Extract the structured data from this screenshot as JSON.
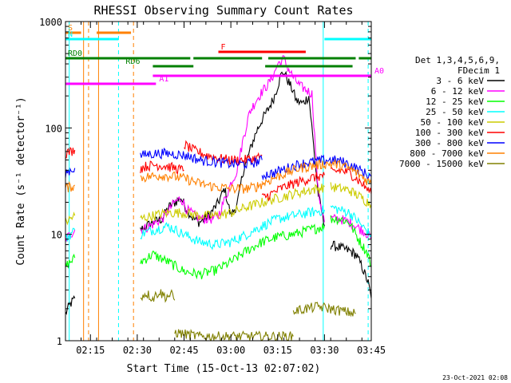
{
  "chart_data": {
    "type": "line",
    "title": "RHESSI Observing Summary Count Rates",
    "xlabel": "Start Time (15-Oct-13 02:07:02)",
    "ylabel": "Count Rate (s⁻¹ detector⁻¹)",
    "x_unit": "minutes after 02:00 UT",
    "xlim": [
      7.0,
      105.0
    ],
    "ylim": [
      1,
      1000
    ],
    "yscale": "log",
    "x_ticks": [
      {
        "value": 15,
        "label": "02:15"
      },
      {
        "value": 30,
        "label": "02:30"
      },
      {
        "value": 45,
        "label": "02:45"
      },
      {
        "value": 60,
        "label": "03:00"
      },
      {
        "value": 75,
        "label": "03:15"
      },
      {
        "value": 90,
        "label": "03:30"
      },
      {
        "value": 105,
        "label": "03:45"
      }
    ],
    "y_ticks": [
      {
        "value": 1,
        "label": "1"
      },
      {
        "value": 10,
        "label": "10"
      },
      {
        "value": 100,
        "label": "100"
      },
      {
        "value": 1000,
        "label": "1000"
      }
    ],
    "legend": {
      "placement": "right",
      "header": [
        "Det 1,3,4,5,6,9,",
        "FDecim 1"
      ]
    },
    "series": [
      {
        "name": "3 - 6 keV",
        "color": "#000000",
        "segments": [
          {
            "x": [
              7,
              8.5,
              10
            ],
            "y": [
              1.8,
              2.2,
              2.5
            ]
          },
          {
            "x": [
              31,
              35,
              38,
              40,
              42,
              44,
              46,
              48,
              50,
              53,
              56,
              58,
              60,
              62,
              64,
              66,
              68,
              70,
              72,
              74,
              76,
              77,
              78,
              80,
              81,
              83,
              85,
              88,
              90
            ],
            "y": [
              11,
              13,
              14,
              18,
              20,
              22,
              17,
              14,
              13,
              15,
              20,
              27,
              15,
              19,
              40,
              60,
              90,
              120,
              150,
              200,
              310,
              340,
              290,
              220,
              180,
              170,
              200,
              24,
              12
            ]
          },
          {
            "x": [
              92,
              95,
              98,
              100,
              102,
              104,
              105
            ],
            "y": [
              8,
              7.5,
              7,
              6.5,
              5,
              3.5,
              2.5
            ]
          }
        ]
      },
      {
        "name": "6 - 12 keV",
        "color": "#ff00ff",
        "segments": [
          {
            "x": [
              7,
              8.5,
              10
            ],
            "y": [
              9,
              10,
              11
            ]
          },
          {
            "x": [
              31,
              34,
              38,
              42,
              44,
              46,
              50,
              54,
              56,
              60,
              62,
              64,
              66,
              68,
              70,
              72,
              74,
              75,
              76,
              77,
              78,
              80,
              82,
              84,
              86,
              88,
              90
            ],
            "y": [
              11,
              12,
              14,
              20,
              22,
              17,
              14,
              14,
              15,
              30,
              40,
              80,
              140,
              180,
              220,
              260,
              330,
              400,
              420,
              450,
              380,
              300,
              250,
              230,
              210,
              25,
              13
            ]
          },
          {
            "x": [
              92,
              95,
              98,
              100,
              102,
              104,
              105
            ],
            "y": [
              14,
              14,
              13,
              12,
              11,
              10,
              9
            ]
          }
        ]
      },
      {
        "name": "12 - 25 keV",
        "color": "#00ff00",
        "segments": [
          {
            "x": [
              7,
              8.5,
              10
            ],
            "y": [
              5,
              5.5,
              6
            ]
          },
          {
            "x": [
              31,
              35,
              40,
              45,
              50,
              55,
              60,
              65,
              70,
              75,
              80,
              85,
              88,
              90
            ],
            "y": [
              5.5,
              6.5,
              5.5,
              4.5,
              4.2,
              4.6,
              5.5,
              7,
              8.5,
              9.5,
              10,
              11,
              11.5,
              12
            ]
          },
          {
            "x": [
              92,
              95,
              98,
              100,
              102,
              104,
              105
            ],
            "y": [
              14,
              14,
              13,
              10,
              8,
              6.5,
              5
            ]
          }
        ]
      },
      {
        "name": "25 - 50 keV",
        "color": "#00ffff",
        "segments": [
          {
            "x": [
              7,
              8.5,
              10
            ],
            "y": [
              9,
              10,
              11
            ]
          },
          {
            "x": [
              31,
              35,
              40,
              45,
              50,
              55,
              60,
              65,
              70,
              75,
              80,
              85,
              88,
              90
            ],
            "y": [
              10,
              11,
              12,
              10,
              8.5,
              8,
              8.5,
              10,
              12,
              14,
              15,
              16,
              16.5,
              17
            ]
          },
          {
            "x": [
              92,
              95,
              98,
              100,
              102,
              104,
              105
            ],
            "y": [
              18,
              17,
              16,
              14,
              12,
              10.5,
              10
            ]
          }
        ]
      },
      {
        "name": "50 - 100 keV",
        "color": "#cccc00",
        "segments": [
          {
            "x": [
              7,
              8.5,
              10
            ],
            "y": [
              13,
              14,
              15
            ]
          },
          {
            "x": [
              31,
              35,
              40,
              45,
              50,
              55,
              60,
              65,
              70,
              75,
              80,
              85,
              88,
              90
            ],
            "y": [
              14,
              15,
              16,
              16,
              15,
              15,
              16,
              18,
              20,
              22,
              24,
              26,
              27,
              28
            ]
          },
          {
            "x": [
              92,
              95,
              98,
              100,
              102,
              104,
              105
            ],
            "y": [
              28,
              27,
              26,
              24,
              22,
              20,
              19
            ]
          }
        ]
      },
      {
        "name": "100 - 300 keV",
        "color": "#ff0000",
        "segments": [
          {
            "x": [
              7,
              8.5,
              10
            ],
            "y": [
              58,
              60,
              62
            ]
          },
          {
            "x": [
              31,
              33,
              36,
              39,
              42,
              45
            ],
            "y": [
              42,
              44,
              45,
              44,
              42,
              40
            ]
          },
          {
            "x": [
              45,
              48,
              52,
              56,
              60,
              64,
              68,
              70
            ],
            "y": [
              70,
              62,
              56,
              52,
              50,
              50,
              52,
              55
            ]
          },
          {
            "x": [
              70,
              73,
              76,
              80,
              83,
              86,
              88,
              90
            ],
            "y": [
              22,
              24,
              27,
              30,
              32,
              34,
              35,
              36
            ]
          },
          {
            "x": [
              92,
              95,
              98,
              100,
              102,
              104,
              105
            ],
            "y": [
              38,
              40,
              38,
              34,
              30,
              26,
              24
            ]
          }
        ]
      },
      {
        "name": "300 - 800 keV",
        "color": "#0000ff",
        "segments": [
          {
            "x": [
              7,
              8.5,
              10
            ],
            "y": [
              38,
              40,
              42
            ]
          },
          {
            "x": [
              31,
              34,
              38,
              42,
              46,
              50,
              55,
              60,
              65,
              68,
              70
            ],
            "y": [
              55,
              57,
              58,
              57,
              55,
              50,
              48,
              46,
              46,
              48,
              50
            ]
          },
          {
            "x": [
              70,
              74,
              78,
              82,
              86,
              90,
              93,
              96,
              99,
              102,
              105
            ],
            "y": [
              36,
              38,
              42,
              46,
              48,
              50,
              50,
              48,
              44,
              39,
              35
            ]
          }
        ]
      },
      {
        "name": "800 - 7000 keV",
        "color": "#ff8000",
        "segments": [
          {
            "x": [
              7,
              8.5,
              10
            ],
            "y": [
              27,
              28,
              29
            ]
          },
          {
            "x": [
              31,
              34,
              38,
              42,
              46,
              50,
              55,
              60,
              65,
              68,
              70
            ],
            "y": [
              34,
              35,
              36,
              35,
              33,
              30,
              28,
              27,
              27,
              28,
              30
            ]
          },
          {
            "x": [
              70,
              74,
              78,
              82,
              86,
              90,
              93,
              96,
              99,
              102,
              105
            ],
            "y": [
              30,
              34,
              38,
              42,
              44,
              46,
              46,
              44,
              40,
              35,
              30
            ]
          }
        ]
      },
      {
        "name": "7000 - 15000 keV",
        "color": "#808000",
        "segments": [
          {
            "x": [
              31,
              33,
              35,
              37,
              39,
              41,
              42
            ],
            "y": [
              2.6,
              2.8,
              2.5,
              2.9,
              2.6,
              2.7,
              2.4
            ]
          },
          {
            "x": [
              42,
              50,
              60,
              70,
              80
            ],
            "y": [
              1.2,
              1.1,
              1.1,
              1.1,
              1.1
            ]
          },
          {
            "x": [
              80,
              84,
              88,
              92,
              96,
              100
            ],
            "y": [
              1.9,
              2.0,
              2.1,
              2.0,
              1.9,
              1.8
            ]
          }
        ]
      }
    ],
    "state_bars": [
      {
        "label": "S",
        "color": "#ff8000",
        "y_frac": 0.035,
        "x_start": 7,
        "x_end": 12
      },
      {
        "label": "",
        "color": "#ff8000",
        "y_frac": 0.035,
        "x_start": 17,
        "x_end": 28
      },
      {
        "label": "N",
        "color": "#00ffff",
        "y_frac": 0.055,
        "x_start": 7,
        "x_end": 24
      },
      {
        "label": "",
        "color": "#00ffff",
        "y_frac": 0.055,
        "x_start": 90,
        "x_end": 105
      },
      {
        "label": "F",
        "color": "#ff0000",
        "y_frac": 0.095,
        "x_start": 56,
        "x_end": 84
      },
      {
        "label": "RD0",
        "color": "#008000",
        "y_frac": 0.115,
        "x_start": 7,
        "x_end": 47
      },
      {
        "label": "",
        "color": "#008000",
        "y_frac": 0.115,
        "x_start": 48,
        "x_end": 70
      },
      {
        "label": "",
        "color": "#008000",
        "y_frac": 0.115,
        "x_start": 72,
        "x_end": 100
      },
      {
        "label": "",
        "color": "#008000",
        "y_frac": 0.115,
        "x_start": 101,
        "x_end": 105
      },
      {
        "label": "RD6",
        "color": "#008000",
        "y_frac": 0.14,
        "x_start": 35,
        "x_end": 48
      },
      {
        "label": "",
        "color": "#008000",
        "y_frac": 0.14,
        "x_start": 71,
        "x_end": 99
      },
      {
        "label": "A0",
        "color": "#ff00ff",
        "y_frac": 0.17,
        "x_start": 35,
        "x_end": 105
      },
      {
        "label": "A1",
        "color": "#ff00ff",
        "y_frac": 0.195,
        "x_start": 7,
        "x_end": 36
      }
    ],
    "vertical_lines": [
      {
        "x": 8.2,
        "color": "#00ffff",
        "style": "solid"
      },
      {
        "x": 12.8,
        "color": "#ff8000",
        "style": "solid"
      },
      {
        "x": 14.4,
        "color": "#ff8000",
        "style": "dashed"
      },
      {
        "x": 17.6,
        "color": "#ff8000",
        "style": "solid"
      },
      {
        "x": 24.0,
        "color": "#00ffff",
        "style": "dashed"
      },
      {
        "x": 28.8,
        "color": "#ff8000",
        "style": "dashed"
      },
      {
        "x": 89.6,
        "color": "#00ffff",
        "style": "solid"
      },
      {
        "x": 104.0,
        "color": "#00ffff",
        "style": "dashed"
      }
    ],
    "footer_date": "23-Oct-2021 02:08"
  }
}
